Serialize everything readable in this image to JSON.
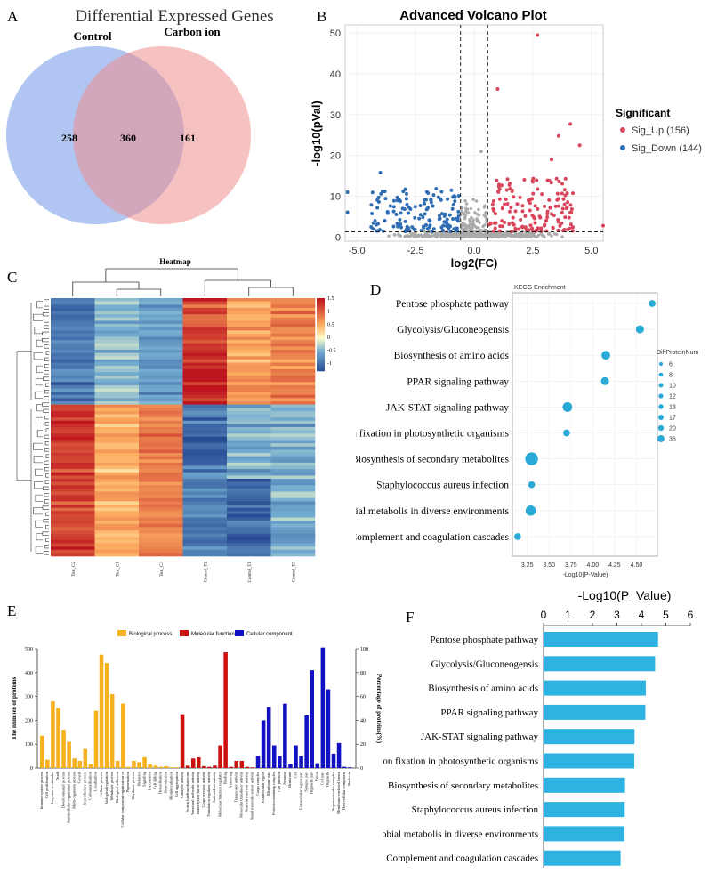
{
  "panels": {
    "A": "A",
    "B": "B",
    "C": "C",
    "D": "D",
    "E": "E",
    "F": "F"
  },
  "colors": {
    "venn_left": "#7b9fe8",
    "venn_right": "#ee8e8e",
    "up": "#d9465c",
    "down": "#2f6db3",
    "ns": "#aaaaaa",
    "kegg_dot": "#29a9d6",
    "bar_f": "#2eb2e2",
    "go_bio": "#f5b21c",
    "go_mol": "#cc1111",
    "go_cell": "#1111c2"
  },
  "chart_data": [
    {
      "id": "venn",
      "type": "venn",
      "title": "Differential Expressed Genes",
      "sets": [
        "Control",
        "Carbon ion"
      ],
      "values": {
        "only_left": 258,
        "both": 360,
        "only_right": 161
      }
    },
    {
      "id": "volcano",
      "type": "scatter",
      "title": "Advanced Volcano Plot",
      "xlabel": "log2(FC)",
      "ylabel": "-log10(pVal)",
      "xlim": [
        -5.5,
        5.5
      ],
      "ylim": [
        -1,
        52
      ],
      "xticks": [
        "-5.0",
        "-2.5",
        "0.0",
        "2.5",
        "5.0"
      ],
      "yticks": [
        "0",
        "10",
        "20",
        "30",
        "40",
        "50"
      ],
      "legend_title": "Significant",
      "legend": [
        "Sig_Up (156)",
        "Sig_Down (144)"
      ],
      "series": [
        {
          "name": "Sig_Up",
          "count": 156
        },
        {
          "name": "Sig_Down",
          "count": 144
        }
      ],
      "thresholds": {
        "fc": [
          -0.58,
          0.58
        ],
        "p": 1.3
      },
      "highlight_points": [
        [
          2.7,
          49.5
        ],
        [
          1.0,
          36.3
        ],
        [
          4.1,
          27.7
        ],
        [
          3.6,
          24.8
        ],
        [
          3.3,
          19.0
        ],
        [
          4.5,
          22.5
        ],
        [
          -4.0,
          15.8
        ],
        [
          -5.4,
          11.0
        ],
        [
          -5.4,
          6.1
        ],
        [
          0.3,
          21.0
        ],
        [
          5.5,
          2.8
        ]
      ]
    },
    {
      "id": "heatmap",
      "type": "heatmap",
      "title": "Heatmap",
      "columns": [
        "Test_C2",
        "Test_C1",
        "Test_C3",
        "Control_T2",
        "Control_T1",
        "Control_T3"
      ],
      "colorbar_ticks": [
        "1.5",
        "1",
        "0.5",
        "0",
        "-0.5",
        "-1"
      ],
      "vlim": [
        -1.3,
        1.5
      ]
    },
    {
      "id": "kegg",
      "type": "scatter",
      "title": "KEGG Enrichment",
      "xlabel": "-Log10(P-Value)",
      "xticks": [
        "3.25",
        "3.50",
        "3.75",
        "4.00",
        "4.25",
        "4.50"
      ],
      "xlim": [
        3.08,
        4.74
      ],
      "size_legend_title": "DiffProteinNum",
      "size_legend": [
        "6",
        "8",
        "10",
        "12",
        "13",
        "17",
        "20",
        "36"
      ],
      "categories": [
        "Pentose phosphate pathway",
        "Glycolysis/Gluconeogensis",
        "Biosynthesis of amino acids",
        "PPAR signaling pathway",
        "JAK-STAT signaling pathway",
        "Carbon fixation in photosynthetic organisms",
        "Biosynthesis of secondary metabolites",
        "Staphylococcus aureus infection",
        "Microbial metabolis in diverse environments",
        "Complement and coagulation cascades"
      ],
      "values": [
        4.68,
        4.54,
        4.15,
        4.14,
        3.71,
        3.7,
        3.3,
        3.3,
        3.29,
        3.14
      ],
      "sizes": [
        6,
        10,
        13,
        10,
        17,
        6,
        36,
        6,
        20,
        6
      ]
    },
    {
      "id": "go",
      "type": "bar",
      "ylabel": "The number of proteins",
      "ylabel_right": "Percentage of proteins(%)",
      "ylim": [
        0,
        500
      ],
      "yticks": [
        "0",
        "100",
        "200",
        "300",
        "400",
        "500"
      ],
      "yticks_right": [
        "0",
        "20",
        "40",
        "60",
        "80",
        "100"
      ],
      "legend": [
        "Biological process",
        "Molecular function",
        "Cellular component"
      ],
      "series": [
        {
          "name": "Biological process",
          "labels": [
            "Immune system process",
            "Cell proliferation",
            "Response to stimulus",
            "Death",
            "Developmental process",
            "Multicellular organismal process",
            "Multi-organism process",
            "Growth",
            "Reproductive process",
            "Carbon utilization",
            "Localization",
            "Cellular process",
            "Biological regulation",
            "Metabolic process",
            "Biological adhesion",
            "Cellular component organization or",
            "Pigmentation",
            "Rhythmic process",
            "Behavior",
            "Signaling",
            "Locomotion",
            "Cell killing",
            "Detoxification",
            "Reproduction",
            "Biomineralization",
            "Cell aggregation"
          ],
          "values": [
            135,
            35,
            280,
            250,
            160,
            110,
            40,
            30,
            80,
            15,
            240,
            475,
            440,
            310,
            30,
            270,
            5,
            30,
            25,
            45,
            15,
            10,
            5,
            8,
            3,
            3
          ]
        },
        {
          "name": "Molecular function",
          "labels": [
            "Catalytic activity",
            "Protein binding chaperone",
            "Structural molecule activity",
            "Transcription factor activity",
            "Cargo receptor activity",
            "Translation regulator activity",
            "Antioxidant activity",
            "Molecular function regulator",
            "Binding",
            "Protein tag",
            "Transporter activity",
            "Molecular transducer activity",
            "Nutrient reservoir activity",
            "Small molecule sensor activity"
          ],
          "values": [
            225,
            10,
            40,
            45,
            8,
            5,
            10,
            95,
            485,
            5,
            30,
            30,
            5,
            3
          ]
        },
        {
          "name": "Cellular component",
          "labels": [
            "Cargo complex",
            "Extracellular region",
            "Membrane part",
            "Protein-containing complex",
            "Cell junction",
            "Synapse",
            "Membrane",
            "Cell",
            "Extracellular region part",
            "Synapse part",
            "Organelle part",
            "Virion",
            "Cell part",
            "Organelle",
            "Supramolecular complex",
            "Membrane-enclosed lumen",
            "Host cellular component",
            "Nucleoid"
          ],
          "values": [
            50,
            200,
            255,
            95,
            50,
            270,
            15,
            95,
            50,
            220,
            410,
            20,
            505,
            330,
            60,
            105,
            5,
            3
          ]
        }
      ]
    },
    {
      "id": "kegg_bar",
      "type": "bar",
      "orientation": "horizontal",
      "title": "-Log10(P_Value)",
      "xticks": [
        "0",
        "1",
        "2",
        "3",
        "4",
        "5",
        "6"
      ],
      "xlim": [
        0,
        6
      ],
      "categories": [
        "Pentose phosphate pathway",
        "Glycolysis/Gluconeogensis",
        "Biosynthesis of amino acids",
        "PPAR signaling pathway",
        "JAK-STAT signaling pathway",
        "Carbon fixation in photosynthetic organisms",
        "Biosynthesis of secondary metabolites",
        "Staphylococcus aureus infection",
        "Microbial metabolis in diverse environments",
        "Complement and coagulation cascades"
      ],
      "values": [
        4.68,
        4.56,
        4.18,
        4.16,
        3.72,
        3.71,
        3.33,
        3.32,
        3.3,
        3.15
      ]
    }
  ]
}
